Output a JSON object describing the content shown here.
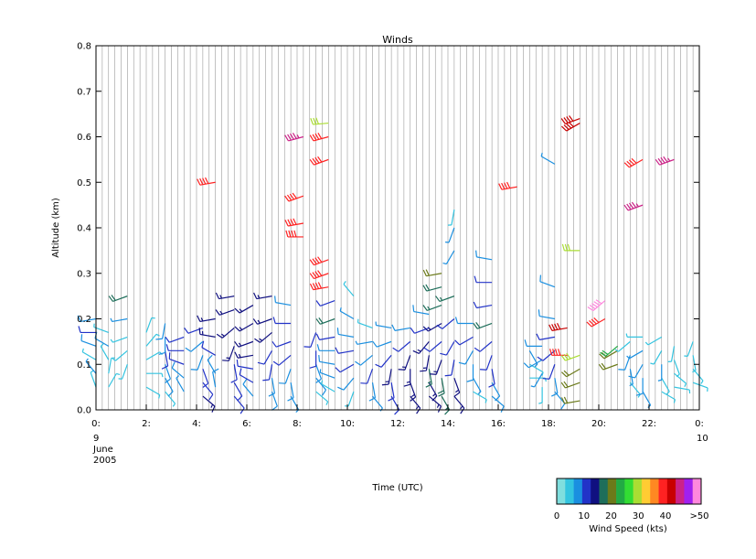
{
  "chart_data": {
    "type": "wind-barbs",
    "title": "Winds",
    "xlabel": "Time (UTC)",
    "ylabel": "Altitude (km)",
    "xlim": [
      0,
      24
    ],
    "ylim": [
      0,
      0.8
    ],
    "x_ticks": [
      {
        "value": 0,
        "label": "0:",
        "sub": [
          "9",
          "June",
          "2005"
        ]
      },
      {
        "value": 2,
        "label": "2:"
      },
      {
        "value": 4,
        "label": "4:"
      },
      {
        "value": 6,
        "label": "6:"
      },
      {
        "value": 8,
        "label": "8:"
      },
      {
        "value": 10,
        "label": "10:"
      },
      {
        "value": 12,
        "label": "12:"
      },
      {
        "value": 14,
        "label": "14:"
      },
      {
        "value": 16,
        "label": "16:"
      },
      {
        "value": 18,
        "label": "18:"
      },
      {
        "value": 20,
        "label": "20:"
      },
      {
        "value": 22,
        "label": "22:"
      },
      {
        "value": 24,
        "label": "0:",
        "sub": [
          "10"
        ]
      }
    ],
    "y_ticks": [
      "0.0",
      "0.1",
      "0.2",
      "0.3",
      "0.4",
      "0.5",
      "0.6",
      "0.7",
      "0.8"
    ],
    "y_tick_values": [
      0,
      0.1,
      0.2,
      0.3,
      0.4,
      0.5,
      0.6,
      0.7,
      0.8
    ],
    "profile_interval_hours": 0.25,
    "colorbar": {
      "label": "Wind Speed (kts)",
      "tick_labels": [
        "0",
        "10",
        "20",
        "30",
        "40",
        ">50"
      ],
      "tick_values": [
        0,
        10,
        20,
        30,
        40,
        50
      ],
      "colors": [
        "#7fdede",
        "#33c4e0",
        "#1a8fe0",
        "#2233c8",
        "#101080",
        "#1e6e5a",
        "#6b7a1a",
        "#22aa44",
        "#33dd33",
        "#aadd33",
        "#ffcc33",
        "#ff8822",
        "#ff2222",
        "#c80000",
        "#cc2288",
        "#a020f0",
        "#ff88dd"
      ]
    },
    "barbs": [
      {
        "t": 0.0,
        "alt": [
          0.05,
          0.08,
          0.11,
          0.14,
          0.17,
          0.2
        ],
        "spd": [
          6,
          7,
          5,
          8,
          10,
          9
        ],
        "dir": [
          340,
          320,
          300,
          290,
          270,
          260
        ]
      },
      {
        "t": 0.5,
        "alt": [
          0.05,
          0.08,
          0.11,
          0.14,
          0.17
        ],
        "spd": [
          6,
          5,
          6,
          8,
          6
        ],
        "dir": [
          30,
          10,
          330,
          300,
          290
        ]
      },
      {
        "t": 1.25,
        "alt": [
          0.1,
          0.13,
          0.16,
          0.2,
          0.25
        ],
        "spd": [
          5,
          6,
          6,
          7,
          18
        ],
        "dir": [
          200,
          230,
          250,
          260,
          250
        ]
      },
      {
        "t": 2.0,
        "alt": [
          0.05,
          0.08,
          0.11,
          0.14,
          0.17
        ],
        "spd": [
          4,
          6,
          5,
          6,
          5
        ],
        "dir": [
          120,
          90,
          60,
          40,
          20
        ]
      },
      {
        "t": 2.75,
        "alt": [
          0.04,
          0.07,
          0.1,
          0.13,
          0.16,
          0.19
        ],
        "spd": [
          6,
          8,
          9,
          10,
          8,
          8
        ],
        "dir": [
          140,
          150,
          160,
          170,
          180,
          190
        ]
      },
      {
        "t": 3.5,
        "alt": [
          0.04,
          0.07,
          0.1,
          0.13,
          0.16
        ],
        "spd": [
          7,
          9,
          10,
          10,
          12
        ],
        "dir": [
          330,
          310,
          290,
          270,
          250
        ]
      },
      {
        "t": 4.25,
        "alt": [
          0.03,
          0.06,
          0.09,
          0.12,
          0.15,
          0.18
        ],
        "spd": [
          14,
          12,
          10,
          9,
          8,
          11
        ],
        "dir": [
          130,
          140,
          160,
          200,
          230,
          250
        ]
      },
      {
        "t": 4.75,
        "alt": [
          0.05,
          0.08,
          0.12,
          0.16,
          0.2,
          0.5
        ],
        "spd": [
          8,
          9,
          12,
          13,
          15,
          40
        ],
        "dir": [
          350,
          330,
          300,
          280,
          260,
          260
        ]
      },
      {
        "t": 5.5,
        "alt": [
          0.03,
          0.06,
          0.1,
          0.14,
          0.18,
          0.22,
          0.25
        ],
        "spd": [
          10,
          11,
          12,
          14,
          15,
          15,
          15
        ],
        "dir": [
          140,
          150,
          170,
          200,
          230,
          250,
          260
        ]
      },
      {
        "t": 6.25,
        "alt": [
          0.03,
          0.06,
          0.09,
          0.12,
          0.15,
          0.19,
          0.23
        ],
        "spd": [
          9,
          10,
          12,
          13,
          14,
          15,
          14
        ],
        "dir": [
          320,
          300,
          280,
          260,
          250,
          240,
          240
        ]
      },
      {
        "t": 7.0,
        "alt": [
          0.04,
          0.07,
          0.1,
          0.13,
          0.17,
          0.2,
          0.25
        ],
        "spd": [
          8,
          9,
          10,
          11,
          13,
          14,
          13
        ],
        "dir": [
          160,
          170,
          190,
          210,
          230,
          250,
          260
        ]
      },
      {
        "t": 7.75,
        "alt": [
          0.03,
          0.06,
          0.09,
          0.12,
          0.15,
          0.19,
          0.23
        ],
        "spd": [
          7,
          8,
          9,
          10,
          12,
          10,
          8
        ],
        "dir": [
          150,
          170,
          200,
          230,
          250,
          270,
          280
        ]
      },
      {
        "t": 8.25,
        "alt": [
          0.38,
          0.41,
          0.47,
          0.6
        ],
        "spd": [
          40,
          38,
          40,
          45
        ],
        "dir": [
          270,
          260,
          250,
          255
        ]
      },
      {
        "t": 8.75,
        "alt": [
          0.04,
          0.07,
          0.1,
          0.13,
          0.17
        ],
        "spd": [
          6,
          8,
          9,
          10,
          11
        ],
        "dir": [
          130,
          140,
          160,
          180,
          200
        ]
      },
      {
        "t": 9.25,
        "alt": [
          0.27,
          0.3,
          0.33,
          0.55,
          0.6,
          0.63
        ],
        "spd": [
          38,
          40,
          40,
          40,
          40,
          30
        ],
        "dir": [
          260,
          250,
          250,
          250,
          255,
          265
        ]
      },
      {
        "t": 9.5,
        "alt": [
          0.04,
          0.07,
          0.1,
          0.13,
          0.16,
          0.2,
          0.24
        ],
        "spd": [
          5,
          7,
          8,
          9,
          10,
          18,
          10
        ],
        "dir": [
          300,
          290,
          280,
          270,
          260,
          250,
          250
        ]
      },
      {
        "t": 10.25,
        "alt": [
          0.04,
          0.07,
          0.1,
          0.13,
          0.16,
          0.2,
          0.25
        ],
        "spd": [
          6,
          8,
          10,
          11,
          9,
          7,
          6
        ],
        "dir": [
          200,
          220,
          240,
          260,
          280,
          300,
          320
        ]
      },
      {
        "t": 11.0,
        "alt": [
          0.03,
          0.06,
          0.09,
          0.12,
          0.15,
          0.18
        ],
        "spd": [
          7,
          9,
          10,
          8,
          7,
          6
        ],
        "dir": [
          140,
          170,
          200,
          230,
          260,
          290
        ]
      },
      {
        "t": 11.75,
        "alt": [
          0.03,
          0.06,
          0.09,
          0.12,
          0.15,
          0.18
        ],
        "spd": [
          10,
          11,
          13,
          12,
          9,
          7
        ],
        "dir": [
          150,
          170,
          190,
          220,
          250,
          280
        ]
      },
      {
        "t": 12.5,
        "alt": [
          0.03,
          0.06,
          0.09,
          0.12,
          0.15,
          0.18
        ],
        "spd": [
          13,
          14,
          15,
          14,
          12,
          9
        ],
        "dir": [
          140,
          160,
          180,
          200,
          230,
          260
        ]
      },
      {
        "t": 13.25,
        "alt": [
          0.03,
          0.06,
          0.09,
          0.12,
          0.15,
          0.18,
          0.21
        ],
        "spd": [
          14,
          15,
          16,
          15,
          13,
          11,
          9
        ],
        "dir": [
          130,
          150,
          170,
          190,
          220,
          250,
          280
        ]
      },
      {
        "t": 13.75,
        "alt": [
          0.03,
          0.07,
          0.11,
          0.15,
          0.19,
          0.23,
          0.27,
          0.3
        ],
        "spd": [
          16,
          18,
          15,
          12,
          14,
          16,
          18,
          20
        ],
        "dir": [
          150,
          170,
          200,
          230,
          240,
          250,
          255,
          260
        ]
      },
      {
        "t": 14.25,
        "alt": [
          0.03,
          0.07,
          0.11,
          0.15,
          0.2,
          0.25,
          0.35,
          0.4,
          0.44
        ],
        "spd": [
          14,
          13,
          12,
          11,
          10,
          16,
          7,
          7,
          6
        ],
        "dir": [
          140,
          160,
          190,
          210,
          230,
          250,
          210,
          200,
          190
        ]
      },
      {
        "t": 15.0,
        "alt": [
          0.04,
          0.07,
          0.1,
          0.13,
          0.16,
          0.19
        ],
        "spd": [
          6,
          7,
          8,
          9,
          10,
          8
        ],
        "dir": [
          120,
          150,
          180,
          210,
          240,
          270
        ]
      },
      {
        "t": 15.75,
        "alt": [
          0.03,
          0.06,
          0.09,
          0.12,
          0.15,
          0.19,
          0.23,
          0.28,
          0.33
        ],
        "spd": [
          8,
          9,
          10,
          11,
          12,
          18,
          11,
          10,
          9
        ],
        "dir": [
          130,
          150,
          170,
          200,
          230,
          250,
          260,
          270,
          280
        ]
      },
      {
        "t": 16.75,
        "alt": [
          0.49
        ],
        "spd": [
          40
        ],
        "dir": [
          260
        ]
      },
      {
        "t": 17.25,
        "alt": [
          0.07,
          0.1,
          0.13
        ],
        "spd": [
          5,
          6,
          7
        ],
        "dir": [
          90,
          120,
          150
        ]
      },
      {
        "t": 17.75,
        "alt": [
          0.05,
          0.08,
          0.11,
          0.14
        ],
        "spd": [
          6,
          7,
          8,
          9
        ],
        "dir": [
          180,
          210,
          240,
          270
        ]
      },
      {
        "t": 18.25,
        "alt": [
          0.04,
          0.07,
          0.1,
          0.13,
          0.16,
          0.2,
          0.27,
          0.54
        ],
        "spd": [
          8,
          9,
          10,
          11,
          10,
          8,
          8,
          7
        ],
        "dir": [
          140,
          170,
          200,
          230,
          260,
          280,
          290,
          300
        ]
      },
      {
        "t": 18.75,
        "alt": [
          0.12,
          0.18
        ],
        "spd": [
          38,
          42
        ],
        "dir": [
          270,
          260
        ]
      },
      {
        "t": 19.25,
        "alt": [
          0.02,
          0.06,
          0.09,
          0.12,
          0.35,
          0.63,
          0.64
        ],
        "spd": [
          20,
          20,
          20,
          30,
          30,
          42,
          42
        ],
        "dir": [
          260,
          250,
          240,
          250,
          270,
          240,
          250
        ]
      },
      {
        "t": 20.25,
        "alt": [
          0.2,
          0.24
        ],
        "spd": [
          38,
          50
        ],
        "dir": [
          240,
          230
        ]
      },
      {
        "t": 20.75,
        "alt": [
          0.1,
          0.13,
          0.14
        ],
        "spd": [
          20,
          20,
          22
        ],
        "dir": [
          250,
          240,
          230
        ]
      },
      {
        "t": 21.25,
        "alt": [
          0.06,
          0.09,
          0.12,
          0.15
        ],
        "spd": [
          6,
          7,
          8,
          6
        ],
        "dir": [
          140,
          170,
          200,
          230
        ]
      },
      {
        "t": 21.75,
        "alt": [
          0.04,
          0.07,
          0.1,
          0.13,
          0.16,
          0.45,
          0.55
        ],
        "spd": [
          7,
          8,
          8,
          7,
          6,
          45,
          38
        ],
        "dir": [
          150,
          180,
          210,
          240,
          270,
          250,
          240
        ]
      },
      {
        "t": 22.5,
        "alt": [
          0.04,
          0.07,
          0.1,
          0.13,
          0.16
        ],
        "spd": [
          5,
          6,
          7,
          5,
          4
        ],
        "dir": [
          120,
          150,
          180,
          210,
          240
        ]
      },
      {
        "t": 23.0,
        "alt": [
          0.05,
          0.08,
          0.11,
          0.14,
          0.55
        ],
        "spd": [
          6,
          5,
          6,
          5,
          45
        ],
        "dir": [
          100,
          130,
          160,
          190,
          250
        ]
      },
      {
        "t": 23.75,
        "alt": [
          0.06,
          0.09,
          0.12,
          0.15
        ],
        "spd": [
          5,
          6,
          5,
          4
        ],
        "dir": [
          110,
          140,
          170,
          200
        ]
      }
    ]
  }
}
